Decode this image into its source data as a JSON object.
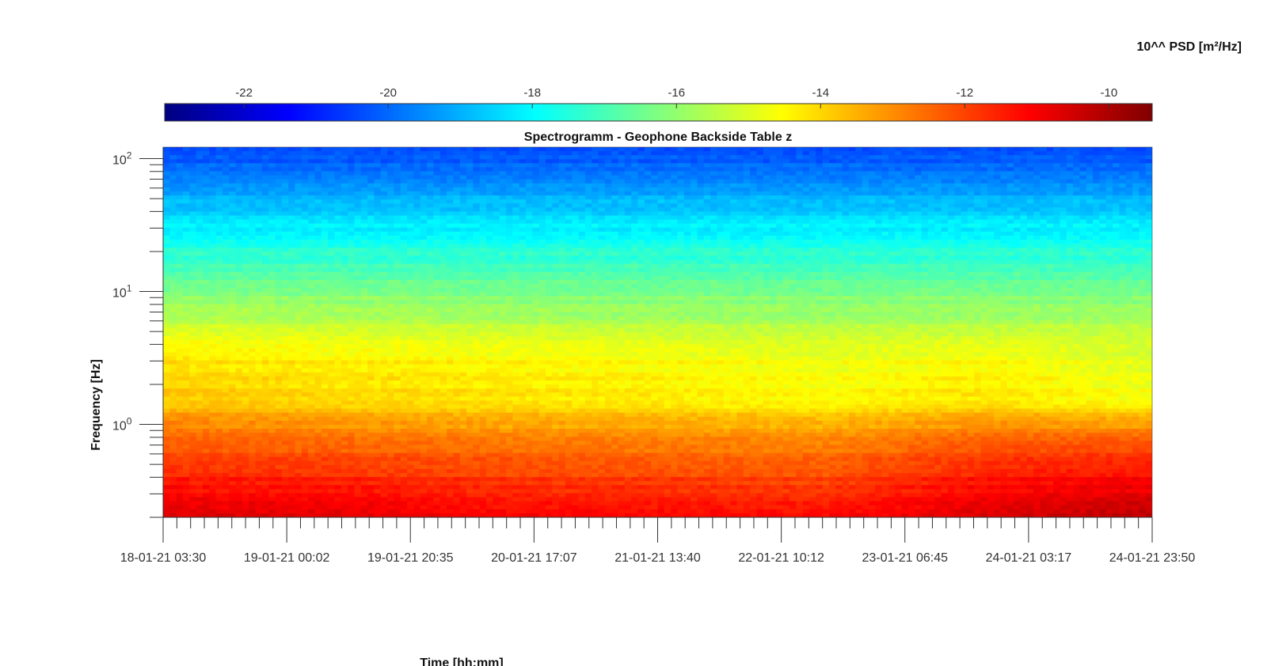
{
  "chart_data": {
    "type": "heatmap",
    "title": "Spectrogramm - Geophone Backside Table z",
    "xlabel": "Time [hh:mm]",
    "ylabel": "Frequency [Hz]",
    "colorbar": {
      "label": "10^^ PSD [m²/Hz]",
      "location": "top",
      "colormap": "jet",
      "range": [
        -23.1,
        -9.4
      ],
      "ticks": [
        -22,
        -20,
        -18,
        -16,
        -14,
        -12,
        -10
      ],
      "tick_labels": [
        "-22",
        "-20",
        "-18",
        "-16",
        "-14",
        "-12",
        "-10"
      ]
    },
    "x_axis": {
      "type": "time",
      "range": [
        "18-01-21 03:30",
        "24-01-21 23:50"
      ],
      "tick_labels": [
        "18-01-21 03:30",
        "19-01-21 00:02",
        "19-01-21 20:35",
        "20-01-21 17:07",
        "21-01-21 13:40",
        "22-01-21 10:12",
        "23-01-21 06:45",
        "24-01-21 03:17",
        "24-01-21 23:50"
      ]
    },
    "y_axis": {
      "scale": "log",
      "range": [
        0.2,
        122
      ],
      "tick_values": [
        1,
        10,
        100
      ],
      "tick_labels": [
        {
          "base": "10",
          "exp": "0"
        },
        {
          "base": "10",
          "exp": "1"
        },
        {
          "base": "10",
          "exp": "2"
        }
      ]
    },
    "frequency_bands_hz": [
      0.2,
      0.35,
      0.7,
      1.0,
      1.5,
      3.0,
      5.0,
      10,
      26,
      60,
      122
    ],
    "time_segments": [
      "18-01-21",
      "19-01-21",
      "20-01-21",
      "21-01-21",
      "22-01-21",
      "23-01-21",
      "24-01-21"
    ],
    "psd_log10_by_band_and_segment": [
      [
        -10.6,
        -10.7,
        -11.0,
        -11.1,
        -11.2,
        -10.6,
        -10.2
      ],
      [
        -11.3,
        -11.4,
        -11.7,
        -11.8,
        -11.9,
        -11.2,
        -10.9
      ],
      [
        -12.3,
        -12.4,
        -12.6,
        -12.7,
        -12.8,
        -12.2,
        -12.1
      ],
      [
        -13.0,
        -13.2,
        -13.4,
        -13.5,
        -13.6,
        -13.2,
        -13.3
      ],
      [
        -13.7,
        -13.9,
        -14.1,
        -14.2,
        -14.4,
        -14.1,
        -14.6
      ],
      [
        -14.1,
        -14.3,
        -14.4,
        -14.5,
        -14.7,
        -14.5,
        -14.9
      ],
      [
        -15.0,
        -15.1,
        -15.2,
        -15.3,
        -15.4,
        -15.3,
        -15.4
      ],
      [
        -16.3,
        -16.3,
        -16.4,
        -16.4,
        -16.4,
        -16.4,
        -16.4
      ],
      [
        -17.9,
        -17.9,
        -17.9,
        -17.9,
        -17.9,
        -17.9,
        -17.9
      ],
      [
        -19.3,
        -19.3,
        -19.3,
        -19.3,
        -19.3,
        -19.3,
        -19.3
      ],
      [
        -20.5,
        -20.5,
        -20.5,
        -20.5,
        -20.5,
        -20.5,
        -20.5
      ]
    ],
    "grid": false
  }
}
